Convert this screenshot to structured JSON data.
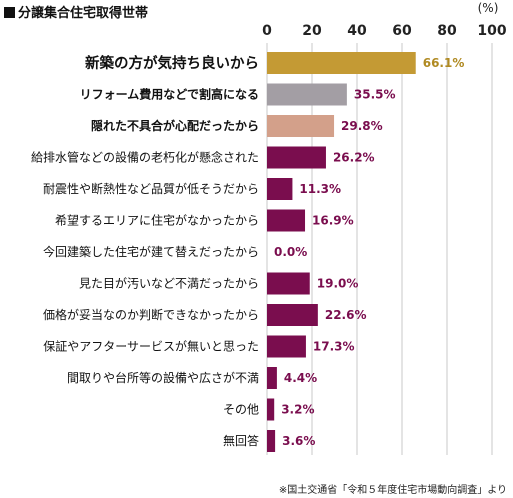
{
  "title": "分譲集合住宅取得世帯",
  "source": "※国土交通省「令和５年度住宅市場動向調査」より",
  "chart_data": {
    "type": "bar",
    "orientation": "horizontal",
    "unit": "(%)",
    "xlim": [
      0,
      100
    ],
    "ticks": [
      0,
      20,
      40,
      60,
      80,
      100
    ],
    "grid": true,
    "categories": [
      "新築の方が気持ち良いから",
      "リフォーム費用などで割高になる",
      "隠れた不具合が心配だったから",
      "給排水管などの設備の老朽化が懸念された",
      "耐震性や断熱性など品質が低そうだから",
      "希望するエリアに住宅がなかったから",
      "今回建築した住宅が建て替えだったから",
      "見た目が汚いなど不満だったから",
      "価格が妥当なのか判断できなかったから",
      "保証やアフターサービスが無いと思った",
      "間取りや台所等の設備や広さが不満",
      "その他",
      "無回答"
    ],
    "values": [
      66.1,
      35.5,
      29.8,
      26.2,
      11.3,
      16.9,
      0.0,
      19.0,
      22.6,
      17.3,
      4.4,
      3.2,
      3.6
    ],
    "value_labels": [
      "66.1%",
      "35.5%",
      "29.8%",
      "26.2%",
      "11.3%",
      "16.9%",
      "0.0%",
      "19.0%",
      "22.6%",
      "17.3%",
      "4.4%",
      "3.2%",
      "3.6%"
    ],
    "colors": [
      "#c49a34",
      "#a39ea4",
      "#d3a08a",
      "#7a0d4e",
      "#7a0d4e",
      "#7a0d4e",
      "#7a0d4e",
      "#7a0d4e",
      "#7a0d4e",
      "#7a0d4e",
      "#7a0d4e",
      "#7a0d4e",
      "#7a0d4e"
    ],
    "label_colors": [
      "#b08a22",
      "#7a0d4e",
      "#7a0d4e",
      "#7a0d4e",
      "#7a0d4e",
      "#7a0d4e",
      "#7a0d4e",
      "#7a0d4e",
      "#7a0d4e",
      "#7a0d4e",
      "#7a0d4e",
      "#7a0d4e",
      "#7a0d4e"
    ]
  }
}
